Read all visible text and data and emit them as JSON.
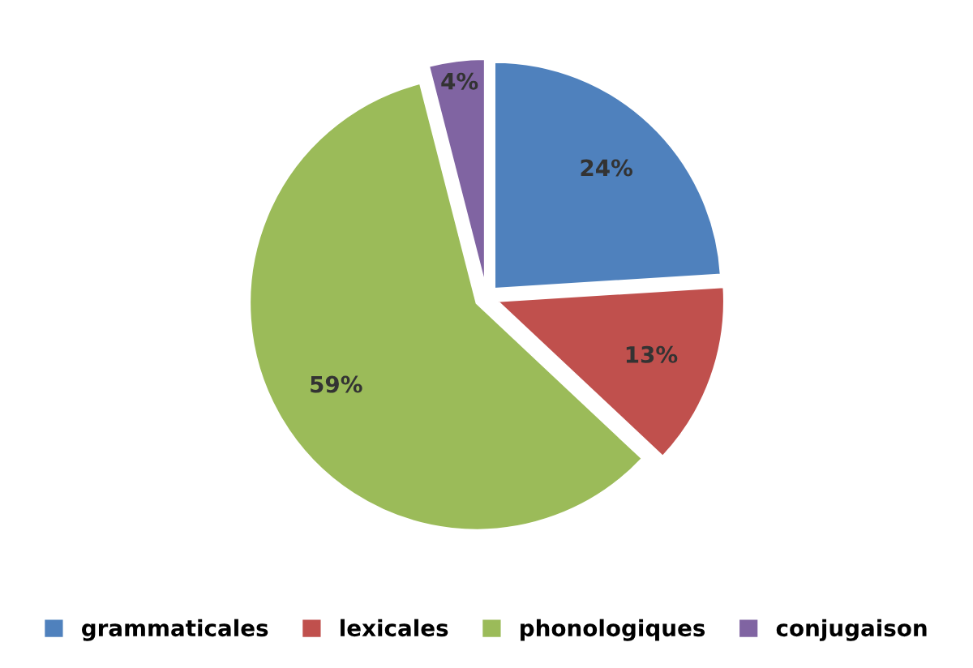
{
  "chart_data": {
    "type": "pie",
    "categories": [
      "grammaticales",
      "lexicales",
      "phonologiques",
      "conjugaison"
    ],
    "values": [
      24,
      13,
      59,
      4
    ],
    "colors": [
      "#4f81bd",
      "#c0504d",
      "#9bbb59",
      "#8064a2"
    ],
    "value_labels": [
      "24%",
      "13%",
      "59%",
      "4%"
    ],
    "legend": "bottom"
  }
}
